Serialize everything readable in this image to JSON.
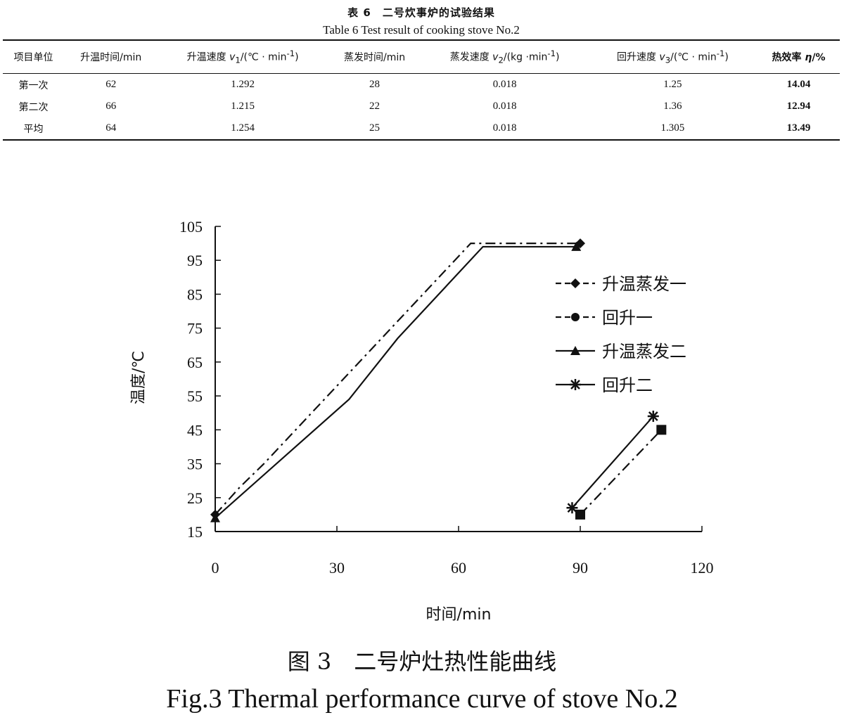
{
  "table": {
    "caption_cn": "表 6　二号炊事炉的试验结果",
    "caption_en": "Table 6    Test result of cooking stove No.2",
    "headers": {
      "item": "项目单位",
      "heat_time": "升温时间/min",
      "heat_speed_pre": "升温速度 ",
      "heat_speed_var": "v",
      "heat_speed_sub": "1",
      "heat_speed_post": "/(℃ · min",
      "heat_speed_sup": "-1",
      "heat_speed_close": ")",
      "evap_time": "蒸发时间/min",
      "evap_speed_pre": "蒸发速度 ",
      "evap_speed_var": "v",
      "evap_speed_sub": "2",
      "evap_speed_post": "/(kg ·min",
      "evap_speed_sup": "-1",
      "evap_speed_close": ")",
      "rise_speed_pre": "回升速度 ",
      "rise_speed_var": "v",
      "rise_speed_sub": "3",
      "rise_speed_post": "/(℃ · min",
      "rise_speed_sup": "-1",
      "rise_speed_close": ")",
      "efficiency_pre": "热效率 ",
      "efficiency_var": "η",
      "efficiency_post": "/%"
    },
    "rows": [
      {
        "item": "第一次",
        "heat_time": "62",
        "heat_speed": "1.292",
        "evap_time": "28",
        "evap_speed": "0.018",
        "rise_speed": "1.25",
        "efficiency": "14.04"
      },
      {
        "item": "第二次",
        "heat_time": "66",
        "heat_speed": "1.215",
        "evap_time": "22",
        "evap_speed": "0.018",
        "rise_speed": "1.36",
        "efficiency": "12.94"
      },
      {
        "item": "平均",
        "heat_time": "64",
        "heat_speed": "1.254",
        "evap_time": "25",
        "evap_speed": "0.018",
        "rise_speed": "1.305",
        "efficiency": "13.49"
      }
    ]
  },
  "chart_data": {
    "type": "line",
    "xlabel": "时间/min",
    "ylabel": "温度/℃",
    "xlim": [
      0,
      120
    ],
    "ylim": [
      15,
      105
    ],
    "xticks": [
      0,
      30,
      60,
      90,
      120
    ],
    "yticks": [
      15,
      25,
      35,
      45,
      55,
      65,
      75,
      85,
      95,
      105
    ],
    "grid": false,
    "legend_position": "right",
    "series": [
      {
        "name": "升温蒸发一",
        "style": "dash-dot",
        "marker": "diamond",
        "color": "#111111",
        "points": [
          [
            0,
            20
          ],
          [
            6,
            28
          ],
          [
            12,
            35
          ],
          [
            63,
            100
          ],
          [
            90,
            100
          ]
        ]
      },
      {
        "name": "回升一",
        "style": "dash-dot",
        "marker": "square",
        "color": "#111111",
        "points": [
          [
            90,
            20
          ],
          [
            110,
            45
          ]
        ]
      },
      {
        "name": "升温蒸发二",
        "style": "solid",
        "marker": "triangle",
        "color": "#111111",
        "points": [
          [
            0,
            19
          ],
          [
            33,
            54
          ],
          [
            45,
            72
          ],
          [
            66,
            99
          ],
          [
            89,
            99
          ]
        ]
      },
      {
        "name": "回升二",
        "style": "solid",
        "marker": "star",
        "color": "#111111",
        "points": [
          [
            88,
            22
          ],
          [
            108,
            49
          ]
        ]
      }
    ]
  },
  "figure": {
    "caption_cn": "图 3　二号炉灶热性能曲线",
    "caption_en": "Fig.3    Thermal performance curve of stove No.2"
  }
}
